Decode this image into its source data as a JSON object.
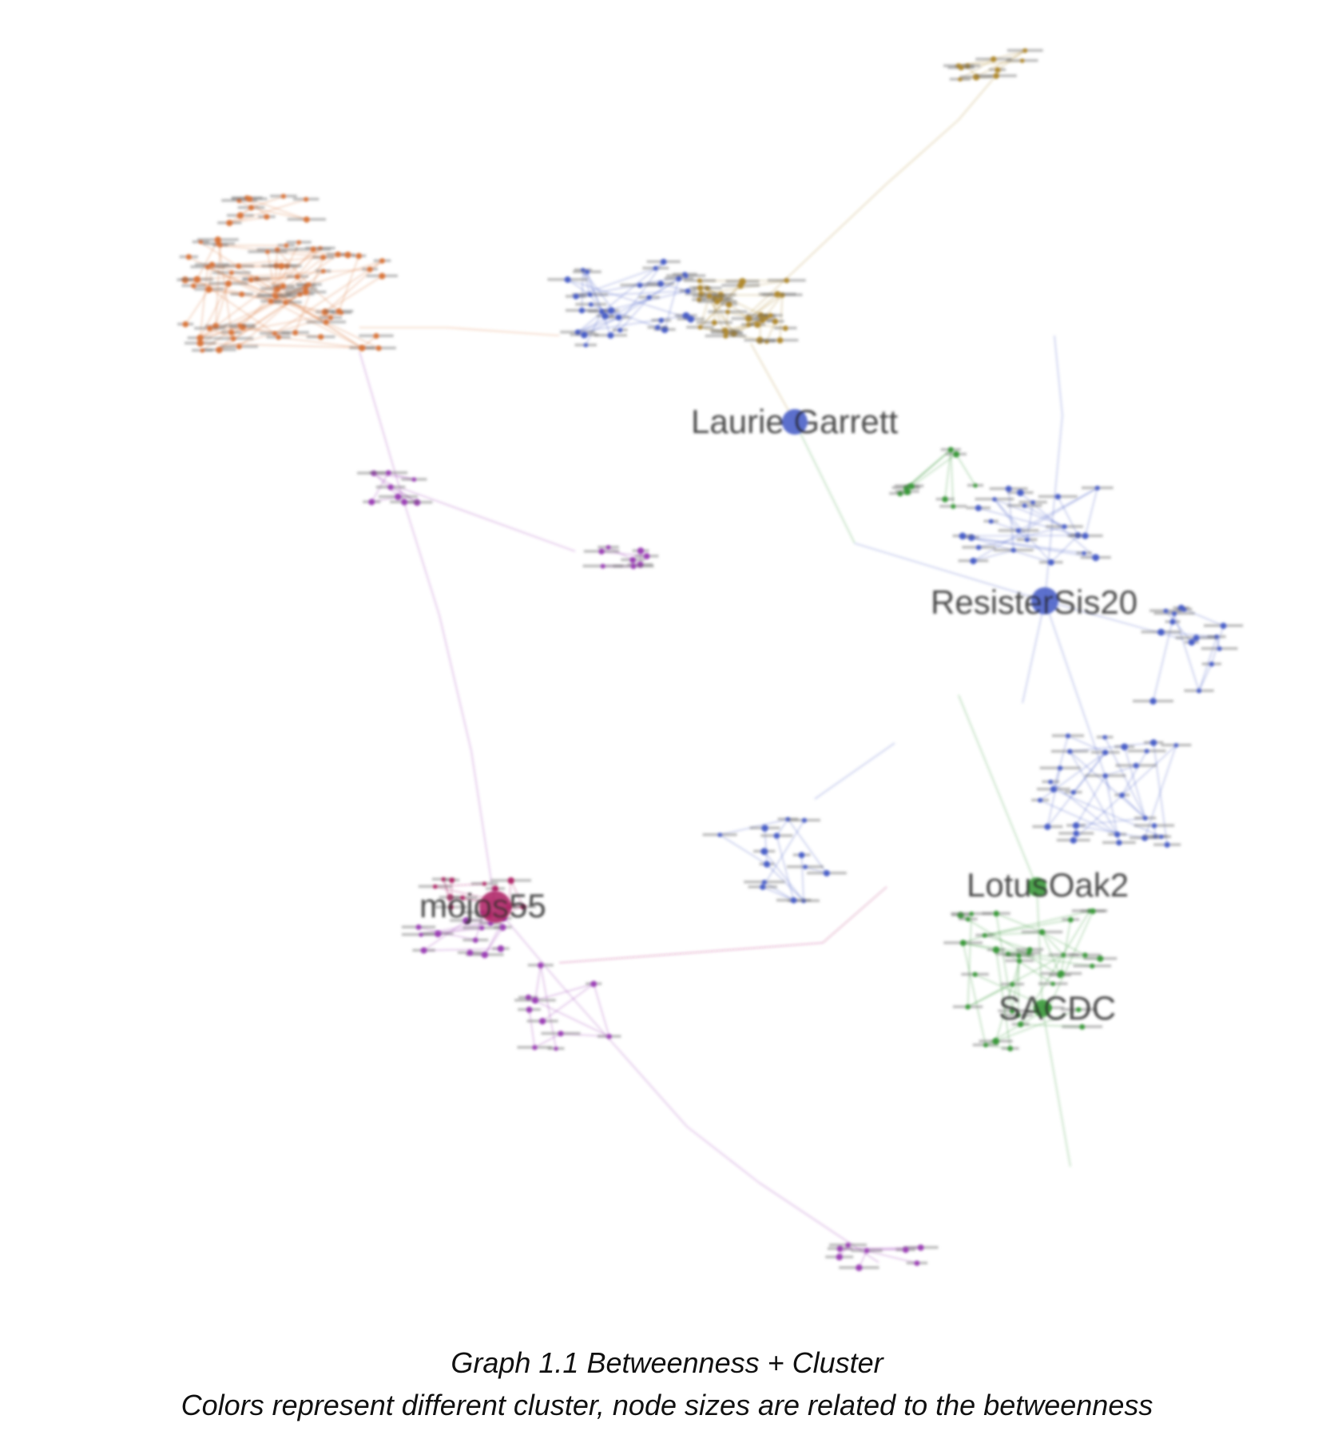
{
  "caption": {
    "title": "Graph 1.1 Betweenness + Cluster",
    "subtitle": "Colors represent different cluster, node sizes are related to the betweenness"
  },
  "clusters": {
    "orange": "#d9763a",
    "brown": "#b08a2e",
    "blue": "#4a5fc8",
    "green": "#3b9a3b",
    "purple": "#9b3fb5",
    "magenta": "#b0286a"
  },
  "hubs": [
    {
      "id": "laurie",
      "label": "Laurie Garrett",
      "cluster": "blue"
    },
    {
      "id": "resister",
      "label": "ResisterSis20",
      "cluster": "blue"
    },
    {
      "id": "mojos",
      "label": "mojos55",
      "cluster": "magenta"
    },
    {
      "id": "lotus",
      "label": "LotusOak2",
      "cluster": "green"
    },
    {
      "id": "sacdc",
      "label": "SACDC",
      "cluster": "green"
    }
  ]
}
